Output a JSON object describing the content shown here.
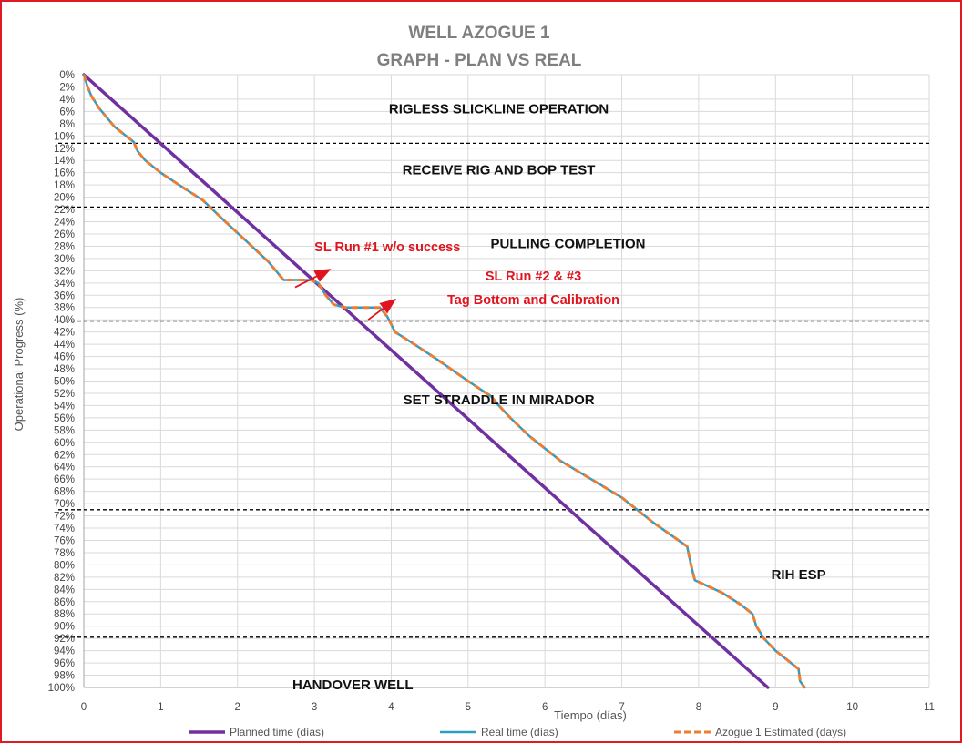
{
  "chart_data": {
    "type": "line",
    "title": "WELL AZOGUE 1",
    "subtitle": "GRAPH  - PLAN VS REAL",
    "xlabel": "Tiempo (días)",
    "ylabel": "Operational Progress (%)",
    "xlim": [
      0,
      11
    ],
    "ylim": [
      0,
      100
    ],
    "y_inverted": true,
    "x_ticks": [
      "0",
      "1",
      "2",
      "3",
      "4",
      "5",
      "6",
      "7",
      "8",
      "9",
      "10",
      "11"
    ],
    "y_ticks": [
      "0%",
      "2%",
      "4%",
      "6%",
      "8%",
      "10%",
      "12%",
      "14%",
      "16%",
      "18%",
      "20%",
      "22%",
      "24%",
      "26%",
      "28%",
      "30%",
      "32%",
      "34%",
      "36%",
      "38%",
      "40%",
      "42%",
      "44%",
      "46%",
      "48%",
      "50%",
      "52%",
      "54%",
      "56%",
      "58%",
      "60%",
      "62%",
      "64%",
      "66%",
      "68%",
      "70%",
      "72%",
      "74%",
      "76%",
      "78%",
      "80%",
      "82%",
      "84%",
      "86%",
      "88%",
      "90%",
      "92%",
      "94%",
      "96%",
      "98%",
      "100%"
    ],
    "grid": true,
    "legend_position": "bottom",
    "series": [
      {
        "name": "Planned time (días)",
        "color": "#7030a0",
        "style": "solid",
        "x": [
          0,
          8.9
        ],
        "y": [
          0,
          100
        ]
      },
      {
        "name": "Real time (días)",
        "color": "#2e9ec4",
        "style": "solid",
        "x": [
          0,
          0.05,
          0.1,
          0.2,
          0.3,
          0.4,
          0.55,
          0.65,
          0.7,
          0.8,
          1.0,
          1.3,
          1.55,
          1.8,
          2.1,
          2.4,
          2.6,
          2.7,
          2.95,
          3.05,
          3.15,
          3.25,
          3.4,
          3.55,
          3.85,
          3.95,
          4.05,
          4.3,
          4.6,
          5.0,
          5.3,
          5.4,
          5.55,
          5.8,
          6.2,
          6.6,
          7.0,
          7.4,
          7.85,
          7.9,
          7.95,
          8.3,
          8.55,
          8.7,
          8.75,
          8.85,
          9.0,
          9.3,
          9.32,
          9.38
        ],
        "y": [
          0,
          2,
          3.5,
          5.5,
          7,
          8.5,
          10,
          11,
          12.5,
          14,
          16,
          18.5,
          20.5,
          23.5,
          27,
          30.5,
          33.5,
          33.5,
          33.5,
          34,
          36,
          37.5,
          38,
          38,
          38,
          39.5,
          42,
          44,
          46.5,
          50,
          52.5,
          54,
          56,
          59,
          63,
          66,
          69,
          73,
          77,
          80,
          82.5,
          84.5,
          86.5,
          88,
          90,
          92,
          94,
          97,
          99,
          100
        ]
      },
      {
        "name": "Azogue 1 Estimated (days)",
        "color": "#ed7d31",
        "style": "dashed",
        "x": [
          0,
          0.05,
          0.1,
          0.2,
          0.3,
          0.4,
          0.55,
          0.65,
          0.7,
          0.8,
          1.0,
          1.3,
          1.55,
          1.8,
          2.1,
          2.4,
          2.6,
          2.7,
          2.95,
          3.05,
          3.15,
          3.25,
          3.4,
          3.55,
          3.85,
          3.95,
          4.05,
          4.3,
          4.6,
          5.0,
          5.3,
          5.4,
          5.55,
          5.8,
          6.2,
          6.6,
          7.0,
          7.4,
          7.85,
          7.9,
          7.95,
          8.3,
          8.55,
          8.7,
          8.75,
          8.85,
          9.0,
          9.3,
          9.32,
          9.38
        ],
        "y": [
          0,
          2,
          3.5,
          5.5,
          7,
          8.5,
          10,
          11,
          12.5,
          14,
          16,
          18.5,
          20.5,
          23.5,
          27,
          30.5,
          33.5,
          33.5,
          33.5,
          34,
          36,
          37.5,
          38,
          38,
          38,
          39.5,
          42,
          44,
          46.5,
          50,
          52.5,
          54,
          56,
          59,
          63,
          66,
          69,
          73,
          77,
          80,
          82.5,
          84.5,
          86.5,
          88,
          90,
          92,
          94,
          97,
          99,
          100
        ]
      }
    ],
    "phase_boundaries_pct": [
      11.2,
      21.6,
      40.2,
      71.0,
      91.8
    ],
    "phases": [
      {
        "label": "RIGLESS SLICKLINE OPERATION",
        "x": 5.4,
        "y": 6.3
      },
      {
        "label": "RECEIVE RIG AND BOP TEST",
        "x": 5.4,
        "y": 16.3
      },
      {
        "label": "PULLING COMPLETION",
        "x": 6.3,
        "y": 28.3
      },
      {
        "label": "SET STRADDLE IN MIRADOR",
        "x": 5.4,
        "y": 53.8
      },
      {
        "label": "RIH ESP",
        "x": 9.3,
        "y": 82.3
      },
      {
        "label": "HANDOVER WELL",
        "x": 3.5,
        "y": 100.3
      }
    ],
    "annotations": [
      {
        "lines": [
          "SL Run #1 w/o success"
        ],
        "x": 3.95,
        "y": 28.8,
        "arrow_from": [
          2.75,
          34.7
        ],
        "arrow_to": [
          3.2,
          31.8
        ]
      },
      {
        "lines": [
          "SL Run #2 & #3",
          "Tag Bottom and Calibration"
        ],
        "x": 5.85,
        "y": 33.6,
        "arrow_from": [
          3.7,
          40.0
        ],
        "arrow_to": [
          4.05,
          36.7
        ]
      }
    ]
  },
  "colors": {
    "frame_border": "#e01a22",
    "grid": "#d9d9d9",
    "phase_divider": "#000000",
    "annotation": "#e0141e"
  }
}
